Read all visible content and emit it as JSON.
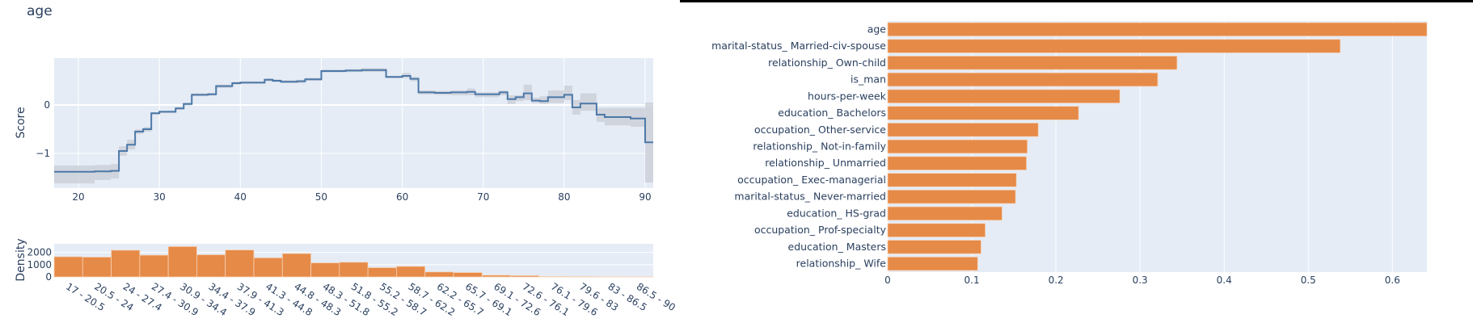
{
  "feature_title": "age",
  "colors": {
    "plot_bg": "#e5ecf6",
    "grid": "#ffffff",
    "line": "#4c78a8",
    "band": "#c8ccd4",
    "bar": "#e68a47",
    "text": "#2a3f5f"
  },
  "score_plot": {
    "ylabel": "Score",
    "yticks": [
      {
        "v": 0,
        "label": "0"
      },
      {
        "v": -1,
        "label": "−1"
      }
    ],
    "xticks": [
      20,
      30,
      40,
      50,
      60,
      70,
      80,
      90
    ]
  },
  "density_plot": {
    "ylabel": "Density",
    "yticks": [
      {
        "v": 0,
        "label": "0"
      },
      {
        "v": 1000,
        "label": "1000"
      },
      {
        "v": 2000,
        "label": "2000"
      }
    ]
  },
  "importance_plot": {
    "xticks": [
      "0",
      "0.1",
      "0.2",
      "0.3",
      "0.4",
      "0.5",
      "0.6"
    ]
  },
  "chart_data": [
    {
      "type": "line",
      "title": "age",
      "xlabel": "",
      "ylabel": "Score",
      "xlim": [
        17,
        91
      ],
      "ylim": [
        -1.75,
        0.95
      ],
      "grid": true,
      "line_shape": "step",
      "x": [
        17,
        20.5,
        22,
        24,
        25,
        26,
        27,
        28,
        29,
        30,
        32,
        33,
        34,
        36,
        37,
        39,
        40,
        43,
        44,
        45,
        47,
        48,
        50,
        53,
        55,
        58,
        60,
        61,
        62,
        64,
        66,
        68,
        69,
        72,
        73,
        74,
        75,
        76,
        77,
        78,
        80,
        81,
        82,
        84,
        85,
        88.2,
        90,
        91
      ],
      "y": [
        -1.38,
        -1.38,
        -1.37,
        -1.36,
        -0.95,
        -0.82,
        -0.55,
        -0.5,
        -0.17,
        -0.14,
        -0.07,
        0.02,
        0.21,
        0.22,
        0.39,
        0.45,
        0.46,
        0.52,
        0.5,
        0.48,
        0.49,
        0.53,
        0.7,
        0.71,
        0.72,
        0.58,
        0.6,
        0.54,
        0.26,
        0.25,
        0.26,
        0.27,
        0.22,
        0.26,
        0.12,
        0.16,
        0.24,
        0.09,
        0.08,
        0.16,
        0.21,
        -0.05,
        0.03,
        -0.2,
        -0.25,
        -0.28,
        -0.77,
        -0.13
      ],
      "band_lower": [
        -1.62,
        -1.62,
        -1.55,
        -1.52,
        -1.05,
        -0.92,
        -0.6,
        -0.55,
        -0.2,
        -0.17,
        -0.1,
        -0.01,
        0.18,
        0.19,
        0.35,
        0.42,
        0.44,
        0.49,
        0.47,
        0.45,
        0.45,
        0.5,
        0.67,
        0.68,
        0.68,
        0.55,
        0.56,
        0.49,
        0.22,
        0.21,
        0.2,
        0.2,
        0.16,
        0.2,
        0.02,
        0.08,
        0.1,
        0.04,
        0.02,
        0.04,
        0.1,
        -0.2,
        -0.12,
        -0.35,
        -0.42,
        -0.45,
        -1.6,
        -0.3
      ],
      "band_upper": [
        -1.25,
        -1.25,
        -1.24,
        -1.22,
        -0.85,
        -0.72,
        -0.5,
        -0.45,
        -0.15,
        -0.12,
        -0.04,
        0.05,
        0.24,
        0.25,
        0.42,
        0.48,
        0.49,
        0.55,
        0.53,
        0.51,
        0.52,
        0.56,
        0.73,
        0.74,
        0.76,
        0.6,
        0.66,
        0.58,
        0.3,
        0.29,
        0.3,
        0.34,
        0.26,
        0.3,
        0.2,
        0.2,
        0.42,
        0.15,
        0.18,
        0.3,
        0.4,
        0.1,
        0.24,
        -0.06,
        -0.06,
        -0.06,
        0.05,
        0.05
      ]
    },
    {
      "type": "bar",
      "title": "",
      "xlabel": "",
      "ylabel": "Density",
      "categories": [
        "17 - 20.5",
        "20.5 - 24",
        "24 - 27.4",
        "27.4 - 30.9",
        "30.9 - 34.4",
        "34.4 - 37.9",
        "37.9 - 41.3",
        "41.3 - 44.8",
        "44.8 - 48.3",
        "48.3 - 51.8",
        "51.8 - 55.2",
        "55.2 - 58.7",
        "58.7 - 62.2",
        "62.2 - 65.7",
        "65.7 - 69.1",
        "69.1 - 72.6",
        "72.6 - 76.1",
        "76.1 - 79.6",
        "79.6 - 83",
        "83 - 86.5",
        "86.5 - 90"
      ],
      "values": [
        1650,
        1620,
        2180,
        1780,
        2480,
        1810,
        2200,
        1560,
        1910,
        1150,
        1200,
        760,
        860,
        410,
        360,
        140,
        110,
        40,
        30,
        15,
        10
      ],
      "ylim": [
        0,
        2700
      ],
      "grid": true
    },
    {
      "type": "bar",
      "orientation": "horizontal",
      "title": "",
      "xlabel": "",
      "ylabel": "",
      "categories": [
        "age",
        "marital-status_ Married-civ-spouse",
        "relationship_ Own-child",
        "is_man",
        "hours-per-week",
        "education_ Bachelors",
        "occupation_ Other-service",
        "relationship_ Not-in-family",
        "relationship_ Unmarried",
        "occupation_ Exec-managerial",
        "marital-status_ Never-married",
        "education_ HS-grad",
        "occupation_ Prof-specialty",
        "education_ Masters",
        "relationship_ Wife"
      ],
      "values": [
        0.641,
        0.538,
        0.344,
        0.321,
        0.276,
        0.227,
        0.179,
        0.166,
        0.165,
        0.153,
        0.152,
        0.136,
        0.116,
        0.111,
        0.107
      ],
      "xlim": [
        0,
        0.641
      ],
      "grid": true
    }
  ]
}
